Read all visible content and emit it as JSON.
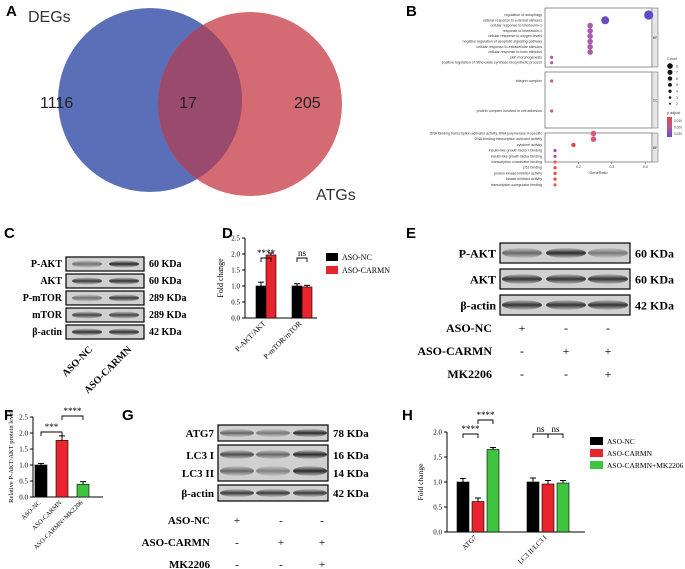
{
  "panels": {
    "a": "A",
    "b": "B",
    "c": "C",
    "d": "D",
    "e": "E",
    "f": "F",
    "g": "G",
    "h": "H"
  },
  "venn": {
    "left_label": "DEGs",
    "right_label": "ATGs",
    "left_only": "1116",
    "overlap": "17",
    "right_only": "205",
    "colors": {
      "left": "#5b6fb8",
      "right": "#d46a72",
      "overlap": "#9a4a6c"
    }
  },
  "dotplot": {
    "section1_terms": [
      "regulation of autophagy",
      "cellular response to external stimulus",
      "cellular response to interleukin-1",
      "response to interleukin-1",
      "cellular response to oxygen levels",
      "negative regulation of apoptotic signaling pathway",
      "cellular response to extracellular stimulus",
      "cellular response to toxic stimulus",
      "skin morphogenesis",
      "positive regulation of nitric-oxide synthase biosynthetic process"
    ],
    "section2_terms": [
      "integrin complex",
      "protein complex involved in cell adhesion"
    ],
    "section3_terms": [
      "DNA-binding transcription activator activity, RNA polymerase II-specific",
      "DNA-binding transcription activator activity",
      "cytokine activity",
      "insulin-like growth factor I binding",
      "insulin-like growth factor binding",
      "transcription coactivator binding",
      "p53 binding",
      "protein kinase inhibitor activity",
      "kinase inhibitor activity",
      "transcription coregulator binding"
    ],
    "section_tags": [
      "BP",
      "CC",
      "MF"
    ],
    "x_ticks": [
      "0.2",
      "0.3",
      "0.4"
    ],
    "x_label": "GeneRatio",
    "legend_count_title": "Count",
    "legend_padj_title": "p.adjust",
    "count_ticks": [
      "8",
      "7",
      "6",
      "5",
      "4",
      "3",
      "2"
    ],
    "padj_ticks": [
      "0.010",
      "0.020",
      "0.030"
    ]
  },
  "wb_c": {
    "rows": [
      {
        "label": "P-AKT",
        "size": "60 KDa"
      },
      {
        "label": "AKT",
        "size": "60 KDa"
      },
      {
        "label": "P-mTOR",
        "size": "289 KDa"
      },
      {
        "label": "mTOR",
        "size": "289 KDa"
      },
      {
        "label": "β-actin",
        "size": "42 KDa"
      }
    ],
    "lanes": [
      "ASO-NC",
      "ASO-CARMN"
    ]
  },
  "chart_d": {
    "ylabel": "Fold change",
    "yticks": [
      "0.0",
      "0.5",
      "1.0",
      "1.5",
      "2.0",
      "2.5"
    ],
    "sig": [
      "****",
      "ns"
    ],
    "legend": [
      "ASO-NC",
      "ASO-CARMN"
    ]
  },
  "wb_e": {
    "rows": [
      {
        "label": "P-AKT",
        "size": "60 KDa"
      },
      {
        "label": "AKT",
        "size": "60 KDa"
      },
      {
        "label": "β-actin",
        "size": "42 KDa"
      }
    ],
    "conditions": [
      {
        "label": "ASO-NC",
        "marks": [
          "+",
          "-",
          "-"
        ]
      },
      {
        "label": "ASO-CARMN",
        "marks": [
          "-",
          "+",
          "+"
        ]
      },
      {
        "label": "MK2206",
        "marks": [
          "-",
          "-",
          "+"
        ]
      }
    ]
  },
  "chart_f": {
    "ylabel": "Relative P-AKT/AKT protein level",
    "yticks": [
      "0.0",
      "0.5",
      "1.0",
      "1.5",
      "2.0",
      "2.5"
    ],
    "sig": [
      "***",
      "****"
    ]
  },
  "wb_g": {
    "rows": [
      {
        "label": "ATG7",
        "size": "78 KDa"
      },
      {
        "label": "LC3 I",
        "size": "16 KDa"
      },
      {
        "label": "LC3 II",
        "size": "14 KDa"
      },
      {
        "label": "β-actin",
        "size": "42 KDa"
      }
    ],
    "conditions": [
      {
        "label": "ASO-NC",
        "marks": [
          "+",
          "-",
          "-"
        ]
      },
      {
        "label": "ASO-CARMN",
        "marks": [
          "-",
          "+",
          "+"
        ]
      },
      {
        "label": "MK2206",
        "marks": [
          "-",
          "-",
          "+"
        ]
      }
    ]
  },
  "chart_h": {
    "ylabel": "Fold change",
    "yticks": [
      "0.0",
      "0.5",
      "1.0",
      "1.5",
      "2.0"
    ],
    "sig": [
      "****",
      "****",
      "ns",
      "ns"
    ],
    "legend": [
      "ASO-NC",
      "ASO-CARMN",
      "ASO-CARMN+MK2206"
    ]
  },
  "chart_data": [
    {
      "type": "bar",
      "categories": [
        "P-AKT/AKT",
        "P-mTOR/mTOR"
      ],
      "series": [
        {
          "name": "ASO-NC",
          "values": [
            1.0,
            1.0
          ],
          "errors": [
            0.12,
            0.07
          ],
          "color": "#000000"
        },
        {
          "name": "ASO-CARMN",
          "values": [
            1.97,
            0.97
          ],
          "errors": [
            0.06,
            0.05
          ],
          "color": "#e8252c"
        }
      ],
      "ylabel": "Fold change",
      "ylim": [
        0,
        2.5
      ]
    },
    {
      "type": "bar",
      "categories": [
        "ASO-NC",
        "ASO-CARMN",
        "ASO-CARMN+MK2206"
      ],
      "values": [
        1.0,
        1.77,
        0.4
      ],
      "errors": [
        0.05,
        0.14,
        0.08
      ],
      "colors": [
        "#000000",
        "#e8252c",
        "#3ec43e"
      ],
      "ylabel": "Relative P-AKT/AKT protein level",
      "ylim": [
        0,
        2.5
      ]
    },
    {
      "type": "bar",
      "categories": [
        "ATG7",
        "LC3 II/LC3 I"
      ],
      "series": [
        {
          "name": "ASO-NC",
          "values": [
            1.0,
            1.0
          ],
          "errors": [
            0.07,
            0.08
          ],
          "color": "#000000"
        },
        {
          "name": "ASO-CARMN",
          "values": [
            0.61,
            0.96
          ],
          "errors": [
            0.07,
            0.07
          ],
          "color": "#e8252c"
        },
        {
          "name": "ASO-CARMN+MK2206",
          "values": [
            1.65,
            0.98
          ],
          "errors": [
            0.04,
            0.05
          ],
          "color": "#3ec43e"
        }
      ],
      "ylabel": "Fold change",
      "ylim": [
        0,
        2.0
      ]
    }
  ]
}
